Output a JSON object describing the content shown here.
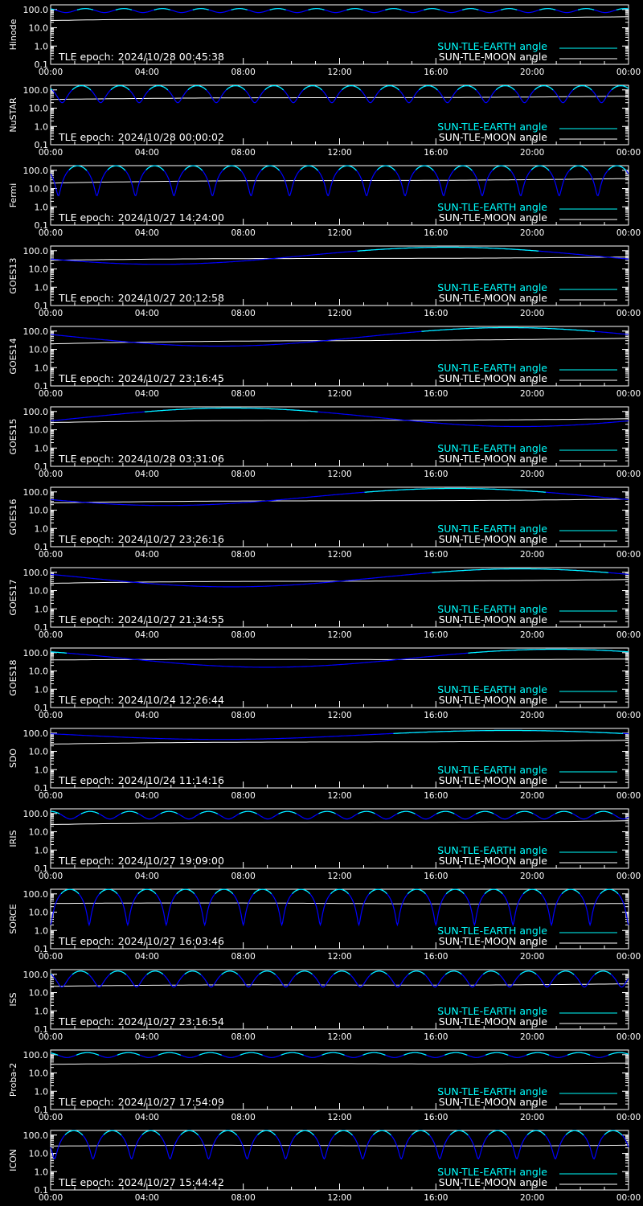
{
  "colors": {
    "background": "#000000",
    "axes": "#ffffff",
    "moon_line": "#ffffff",
    "earth_line_light": "#00ffff",
    "earth_line_dark": "#0000ff"
  },
  "legend": {
    "earth_label": "SUN-TLE-EARTH angle",
    "moon_label": "SUN-TLE-MOON angle"
  },
  "epoch_prefix": "TLE epoch:",
  "chart_data": [
    {
      "type": "line",
      "ylabel": "Hinode",
      "epoch": "2024/10/28 00:45:38",
      "ylim": [
        0.1,
        180
      ],
      "yscale": "log",
      "x": [
        "00:00",
        "04:00",
        "08:00",
        "12:00",
        "16:00",
        "20:00",
        "00:00"
      ],
      "yticks": [
        "0.1",
        "1.0",
        "10.0",
        "100.0"
      ],
      "earth_model": {
        "kind": "orbit",
        "base": 90,
        "amp": 22,
        "period_h": 1.6,
        "phase": 0.1
      },
      "moon_model": {
        "start": 25,
        "end": 40
      }
    },
    {
      "type": "line",
      "ylabel": "NuSTAR",
      "epoch": "2024/10/28 00:00:02",
      "ylim": [
        0.1,
        180
      ],
      "yscale": "log",
      "x": [
        "00:00",
        "04:00",
        "08:00",
        "12:00",
        "16:00",
        "20:00",
        "00:00"
      ],
      "yticks": [
        "0.1",
        "1.0",
        "10.0",
        "100.0"
      ],
      "earth_model": {
        "kind": "orbit",
        "base": 95,
        "amp": 75,
        "period_h": 1.6,
        "phase": 0.2
      },
      "moon_model": {
        "start": 30,
        "end": 45
      }
    },
    {
      "type": "line",
      "ylabel": "Fermi",
      "epoch": "2024/10/27 14:24:00",
      "ylim": [
        0.1,
        180
      ],
      "yscale": "log",
      "x": [
        "00:00",
        "04:00",
        "08:00",
        "12:00",
        "16:00",
        "20:00",
        "00:00"
      ],
      "yticks": [
        "0.1",
        "1.0",
        "10.0",
        "100.0"
      ],
      "earth_model": {
        "kind": "orbit",
        "base": 90,
        "amp": 86,
        "period_h": 1.6,
        "phase": 0.3
      },
      "moon_model": {
        "start": 20,
        "end": 35
      }
    },
    {
      "type": "line",
      "ylabel": "GOES13",
      "epoch": "2024/10/27 20:12:58",
      "ylim": [
        0.1,
        180
      ],
      "yscale": "log",
      "x": [
        "00:00",
        "04:00",
        "08:00",
        "12:00",
        "16:00",
        "20:00",
        "00:00"
      ],
      "yticks": [
        "0.1",
        "1.0",
        "10.0",
        "100.0"
      ],
      "earth_model": {
        "kind": "geo",
        "min": 18,
        "min_hour": 4.5,
        "max": 155
      },
      "moon_model": {
        "start": 30,
        "end": 45
      }
    },
    {
      "type": "line",
      "ylabel": "GOES14",
      "epoch": "2024/10/27 23:16:45",
      "ylim": [
        0.1,
        180
      ],
      "yscale": "log",
      "x": [
        "00:00",
        "04:00",
        "08:00",
        "12:00",
        "16:00",
        "20:00",
        "00:00"
      ],
      "yticks": [
        "0.1",
        "1.0",
        "10.0",
        "100.0"
      ],
      "earth_model": {
        "kind": "geo",
        "min": 15,
        "min_hour": 7.0,
        "max": 155
      },
      "moon_model": {
        "start": 20,
        "end": 40
      }
    },
    {
      "type": "line",
      "ylabel": "GOES15",
      "epoch": "2024/10/28 03:31:06",
      "ylim": [
        0.1,
        180
      ],
      "yscale": "log",
      "x": [
        "00:00",
        "04:00",
        "08:00",
        "12:00",
        "16:00",
        "20:00",
        "00:00"
      ],
      "yticks": [
        "0.1",
        "1.0",
        "10.0",
        "100.0"
      ],
      "earth_model": {
        "kind": "geo",
        "min": 15,
        "min_hour": 19.5,
        "max": 155
      },
      "moon_model": {
        "start": 25,
        "end": 40
      }
    },
    {
      "type": "line",
      "ylabel": "GOES16",
      "epoch": "2024/10/27 23:26:16",
      "ylim": [
        0.1,
        180
      ],
      "yscale": "log",
      "x": [
        "00:00",
        "04:00",
        "08:00",
        "12:00",
        "16:00",
        "20:00",
        "00:00"
      ],
      "yticks": [
        "0.1",
        "1.0",
        "10.0",
        "100.0"
      ],
      "earth_model": {
        "kind": "geo",
        "min": 18,
        "min_hour": 4.8,
        "max": 155
      },
      "moon_model": {
        "start": 25,
        "end": 40
      }
    },
    {
      "type": "line",
      "ylabel": "GOES17",
      "epoch": "2024/10/27 21:34:55",
      "ylim": [
        0.1,
        180
      ],
      "yscale": "log",
      "x": [
        "00:00",
        "04:00",
        "08:00",
        "12:00",
        "16:00",
        "20:00",
        "00:00"
      ],
      "yticks": [
        "0.1",
        "1.0",
        "10.0",
        "100.0"
      ],
      "earth_model": {
        "kind": "geo",
        "min": 16,
        "min_hour": 7.5,
        "max": 155
      },
      "moon_model": {
        "start": 25,
        "end": 40
      }
    },
    {
      "type": "line",
      "ylabel": "GOES18",
      "epoch": "2024/10/24 12:26:44",
      "ylim": [
        0.1,
        180
      ],
      "yscale": "log",
      "x": [
        "00:00",
        "04:00",
        "08:00",
        "12:00",
        "16:00",
        "20:00",
        "00:00"
      ],
      "yticks": [
        "0.1",
        "1.0",
        "10.0",
        "100.0"
      ],
      "earth_model": {
        "kind": "geo",
        "min": 16,
        "min_hour": 9.0,
        "max": 155
      },
      "moon_model": {
        "start": 40,
        "end": 45
      }
    },
    {
      "type": "line",
      "ylabel": "SDO",
      "epoch": "2024/10/24 11:14:16",
      "ylim": [
        0.1,
        180
      ],
      "yscale": "log",
      "x": [
        "00:00",
        "04:00",
        "08:00",
        "12:00",
        "16:00",
        "20:00",
        "00:00"
      ],
      "yticks": [
        "0.1",
        "1.0",
        "10.0",
        "100.0"
      ],
      "earth_model": {
        "kind": "geo",
        "min": 45,
        "min_hour": 7.0,
        "max": 140
      },
      "moon_model": {
        "start": 25,
        "end": 40
      }
    },
    {
      "type": "line",
      "ylabel": "IRIS",
      "epoch": "2024/10/27 19:09:00",
      "ylim": [
        0.1,
        180
      ],
      "yscale": "log",
      "x": [
        "00:00",
        "04:00",
        "08:00",
        "12:00",
        "16:00",
        "20:00",
        "00:00"
      ],
      "yticks": [
        "0.1",
        "1.0",
        "10.0",
        "100.0"
      ],
      "earth_model": {
        "kind": "orbit",
        "base": 90,
        "amp": 40,
        "period_h": 1.64,
        "phase": 0.0
      },
      "moon_model": {
        "start": 25,
        "end": 40
      }
    },
    {
      "type": "line",
      "ylabel": "SORCE",
      "epoch": "2024/10/27 16:03:46",
      "ylim": [
        0.1,
        180
      ],
      "yscale": "log",
      "x": [
        "00:00",
        "04:00",
        "08:00",
        "12:00",
        "16:00",
        "20:00",
        "00:00"
      ],
      "yticks": [
        "0.1",
        "1.0",
        "10.0",
        "100.0"
      ],
      "earth_model": {
        "kind": "orbit",
        "base": 90,
        "amp": 88,
        "period_h": 1.6,
        "phase": 0.5
      },
      "moon_model": {
        "start": 30,
        "end": 30
      }
    },
    {
      "type": "line",
      "ylabel": "ISS",
      "epoch": "2024/10/27 23:16:54",
      "ylim": [
        0.1,
        180
      ],
      "yscale": "log",
      "x": [
        "00:00",
        "04:00",
        "08:00",
        "12:00",
        "16:00",
        "20:00",
        "00:00"
      ],
      "yticks": [
        "0.1",
        "1.0",
        "10.0",
        "100.0"
      ],
      "earth_model": {
        "kind": "orbit",
        "base": 85,
        "amp": 65,
        "period_h": 1.55,
        "phase": 0.2
      },
      "moon_model": {
        "start": 22,
        "end": 30
      }
    },
    {
      "type": "line",
      "ylabel": "Proba-2",
      "epoch": "2024/10/27 17:54:09",
      "ylim": [
        0.1,
        180
      ],
      "yscale": "log",
      "x": [
        "00:00",
        "04:00",
        "08:00",
        "12:00",
        "16:00",
        "20:00",
        "00:00"
      ],
      "yticks": [
        "0.1",
        "1.0",
        "10.0",
        "100.0"
      ],
      "earth_model": {
        "kind": "orbit",
        "base": 100,
        "amp": 30,
        "period_h": 1.7,
        "phase": 0.1
      },
      "moon_model": {
        "start": 30,
        "end": 35
      }
    },
    {
      "type": "line",
      "ylabel": "ICON",
      "epoch": "2024/10/27 15:44:42",
      "ylim": [
        0.1,
        180
      ],
      "yscale": "log",
      "x": [
        "00:00",
        "04:00",
        "08:00",
        "12:00",
        "16:00",
        "20:00",
        "00:00"
      ],
      "yticks": [
        "0.1",
        "1.0",
        "10.0",
        "100.0"
      ],
      "earth_model": {
        "kind": "orbit",
        "base": 90,
        "amp": 85,
        "period_h": 1.6,
        "phase": 0.4
      },
      "moon_model": {
        "start": 25,
        "end": 28
      }
    }
  ]
}
